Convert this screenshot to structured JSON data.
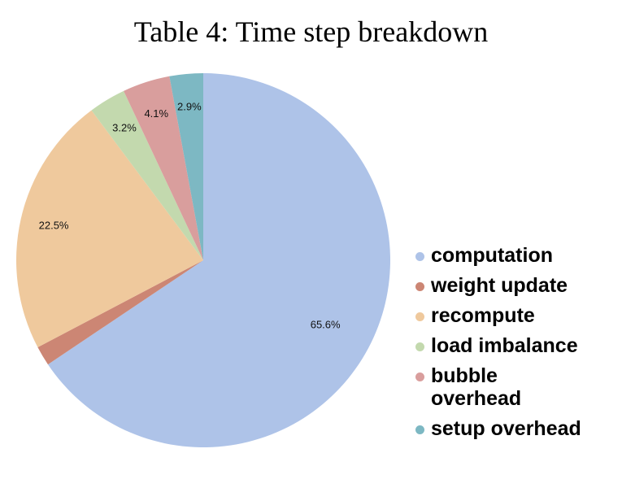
{
  "chart_data": {
    "type": "pie",
    "title": "Table 4: Time step breakdown",
    "slices": [
      {
        "label": "computation",
        "value": 65.6,
        "value_label": "65.6%",
        "color": "#aec3e8"
      },
      {
        "label": "weight update",
        "value": 1.7,
        "value_label": "",
        "color": "#cc8674"
      },
      {
        "label": "recompute",
        "value": 22.5,
        "value_label": "22.5%",
        "color": "#efc99d"
      },
      {
        "label": "load imbalance",
        "value": 3.2,
        "value_label": "3.2%",
        "color": "#c3d9ae"
      },
      {
        "label": "bubble overhead",
        "value": 4.1,
        "value_label": "4.1%",
        "color": "#d99e9d"
      },
      {
        "label": "setup overhead",
        "value": 2.9,
        "value_label": "2.9%",
        "color": "#7db8c3"
      }
    ],
    "legend_position": "right"
  }
}
